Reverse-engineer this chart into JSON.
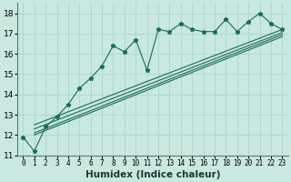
{
  "xlabel": "Humidex (Indice chaleur)",
  "bg_color": "#c8e8e0",
  "grid_color": "#b0d8d0",
  "line_color": "#1a6b5a",
  "xlim": [
    -0.5,
    23.5
  ],
  "ylim": [
    11.0,
    18.5
  ],
  "xticks": [
    0,
    1,
    2,
    3,
    4,
    5,
    6,
    7,
    8,
    9,
    10,
    11,
    12,
    13,
    14,
    15,
    16,
    17,
    18,
    19,
    20,
    21,
    22,
    23
  ],
  "yticks": [
    11,
    12,
    13,
    14,
    15,
    16,
    17,
    18
  ],
  "main_series_x": [
    0,
    1,
    2,
    3,
    4,
    5,
    6,
    7,
    8,
    9,
    10,
    11,
    12,
    13,
    14,
    15,
    16,
    17,
    18,
    19,
    20,
    21,
    22,
    23
  ],
  "main_series_y": [
    11.9,
    11.2,
    12.4,
    12.9,
    13.5,
    14.3,
    14.8,
    15.4,
    16.4,
    16.1,
    16.7,
    15.2,
    17.2,
    17.1,
    17.5,
    17.2,
    17.1,
    17.1,
    17.7,
    17.1,
    17.6,
    18.0,
    17.5,
    17.2
  ],
  "smooth_line1_x": [
    1,
    23
  ],
  "smooth_line1_y": [
    12.0,
    16.85
  ],
  "smooth_line2_x": [
    1,
    23
  ],
  "smooth_line2_y": [
    12.3,
    17.05
  ],
  "smooth_line3_x": [
    1,
    23
  ],
  "smooth_line3_y": [
    12.5,
    17.2
  ],
  "smooth_line4_x": [
    1,
    23
  ],
  "smooth_line4_y": [
    12.1,
    16.95
  ]
}
